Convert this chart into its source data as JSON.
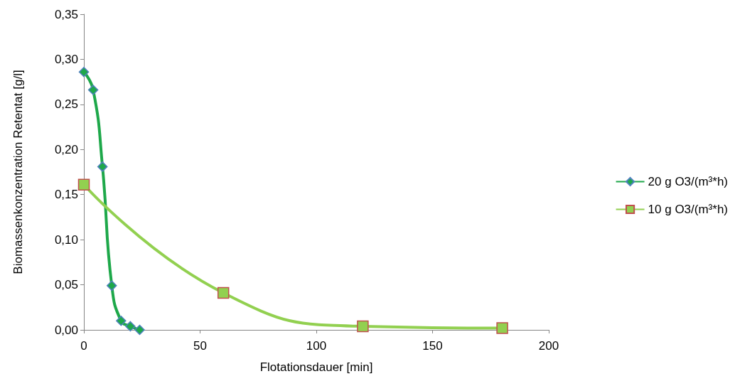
{
  "chart_data": {
    "type": "line",
    "xlabel": "Flotationsdauer [min]",
    "ylabel": "Biomassenkonzentration Retentat [g/l]",
    "series": [
      {
        "name": "20 g O3/(m³*h)",
        "color": "#1ea84a",
        "marker": "diamond",
        "x": [
          0,
          4,
          8,
          12,
          16,
          20,
          24
        ],
        "values": [
          0.286,
          0.266,
          0.181,
          0.049,
          0.01,
          0.004,
          0.0
        ]
      },
      {
        "name": "10 g O3/(m³*h)",
        "color": "#92d050",
        "marker": "square",
        "x": [
          0,
          60,
          120,
          180
        ],
        "values": [
          0.161,
          0.041,
          0.004,
          0.002
        ]
      }
    ],
    "xlim": [
      0,
      200
    ],
    "xticks": [
      0,
      50,
      100,
      150,
      200
    ],
    "ylim": [
      0,
      0.35
    ],
    "yticks": [
      {
        "value": 0,
        "label": "0,00"
      },
      {
        "value": 0.05,
        "label": "0,05"
      },
      {
        "value": 0.1,
        "label": "0,10"
      },
      {
        "value": 0.15,
        "label": "0,15"
      },
      {
        "value": 0.2,
        "label": "0,20"
      },
      {
        "value": 0.25,
        "label": "0,25"
      },
      {
        "value": 0.3,
        "label": "0,30"
      },
      {
        "value": 0.35,
        "label": "0,35"
      }
    ],
    "grid": false,
    "legend": "right"
  }
}
